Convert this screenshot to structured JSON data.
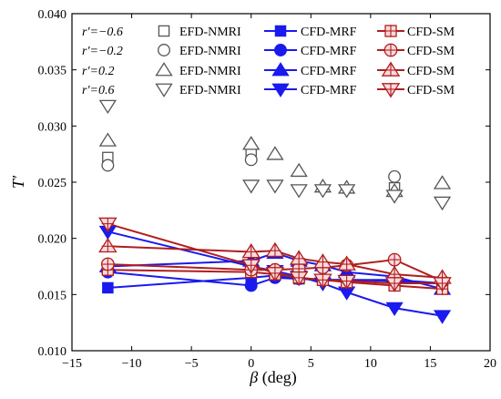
{
  "chart_data": {
    "type": "line",
    "xlabel": {
      "symbol": "β",
      "unit": " (deg)"
    },
    "ylabel": "T'",
    "xlim": [
      -15,
      20
    ],
    "ylim": [
      0.01,
      0.04
    ],
    "x_ticks": [
      -15,
      -10,
      -5,
      0,
      5,
      10,
      15,
      20
    ],
    "y_ticks": [
      0.01,
      0.015,
      0.02,
      0.025,
      0.03,
      0.035,
      0.04
    ],
    "x_tick_labels": [
      "−15",
      "−10",
      "−5",
      "0",
      "5",
      "10",
      "15",
      "20"
    ],
    "y_tick_labels": [
      "0.010",
      "0.015",
      "0.020",
      "0.025",
      "0.030",
      "0.035",
      "0.040"
    ],
    "grid": false,
    "legend_position": "top",
    "colors": {
      "efd": "#555555",
      "mrf": "#1a1aee",
      "sm": "#b01e1e",
      "sm_fill": "#fadadd"
    },
    "legend_rows": [
      {
        "ratio_label": "r′=−0.6",
        "marker": "square"
      },
      {
        "ratio_label": "r′=−0.2",
        "marker": "circle"
      },
      {
        "ratio_label": "r′=0.2",
        "marker": "triangle"
      },
      {
        "ratio_label": "r′=0.6",
        "marker": "triangle-down"
      }
    ],
    "legend_labels": {
      "efd": "EFD-NMRI",
      "mrf": "CFD-MRF",
      "sm": "CFD-SM"
    },
    "series": [
      {
        "name": "EFD-NMRI",
        "ratio": "r′=−0.6",
        "marker": "square",
        "kind": "efd",
        "x": [
          -12,
          0,
          12
        ],
        "y": [
          0.0272,
          0.0278,
          0.0245
        ]
      },
      {
        "name": "EFD-NMRI",
        "ratio": "r′=−0.2",
        "marker": "circle",
        "kind": "efd",
        "x": [
          -12,
          0,
          12
        ],
        "y": [
          0.0265,
          0.027,
          0.0255
        ]
      },
      {
        "name": "EFD-NMRI",
        "ratio": "r′=0.2",
        "marker": "triangle",
        "kind": "efd",
        "x": [
          -12,
          0,
          2,
          4,
          6,
          8,
          12,
          16
        ],
        "y": [
          0.0287,
          0.0284,
          0.0275,
          0.026,
          0.0246,
          0.0245,
          0.0242,
          0.0249
        ]
      },
      {
        "name": "EFD-NMRI",
        "ratio": "r′=0.6",
        "marker": "triangle-down",
        "kind": "efd",
        "x": [
          -12,
          0,
          2,
          4,
          6,
          8,
          12,
          16
        ],
        "y": [
          0.0318,
          0.0247,
          0.0247,
          0.0243,
          0.0243,
          0.0243,
          0.0238,
          0.0232
        ]
      },
      {
        "name": "CFD-MRF",
        "ratio": "r′=−0.6",
        "marker": "square",
        "kind": "mrf",
        "x": [
          -12,
          0,
          2,
          4,
          6,
          8,
          12,
          16
        ],
        "y": [
          0.0156,
          0.0165,
          0.0167,
          0.0164,
          0.0163,
          0.0163,
          0.0162,
          0.016
        ]
      },
      {
        "name": "CFD-MRF",
        "ratio": "r′=−0.2",
        "marker": "circle",
        "kind": "mrf",
        "x": [
          -12,
          0,
          2,
          4,
          6,
          8,
          12,
          16
        ],
        "y": [
          0.017,
          0.0158,
          0.0165,
          0.0164,
          0.0163,
          0.0163,
          0.0163,
          0.016
        ]
      },
      {
        "name": "CFD-MRF",
        "ratio": "r′=0.2",
        "marker": "triangle",
        "kind": "mrf",
        "x": [
          -12,
          0,
          2,
          4,
          6,
          8,
          12,
          16
        ],
        "y": [
          0.0175,
          0.018,
          0.0187,
          0.018,
          0.0176,
          0.017,
          0.0166,
          0.0155
        ]
      },
      {
        "name": "CFD-MRF",
        "ratio": "r′=0.6",
        "marker": "triangle-down",
        "kind": "mrf",
        "x": [
          -12,
          0,
          2,
          4,
          6,
          8,
          12,
          16
        ],
        "y": [
          0.0206,
          0.0175,
          0.0171,
          0.0166,
          0.016,
          0.0152,
          0.0138,
          0.0131
        ]
      },
      {
        "name": "CFD-SM",
        "ratio": "r′=−0.6",
        "marker": "square",
        "kind": "sm",
        "x": [
          -12,
          0,
          2,
          4,
          6,
          8,
          12,
          16
        ],
        "y": [
          0.0172,
          0.017,
          0.0168,
          0.0165,
          0.0163,
          0.0161,
          0.0158,
          0.0155
        ]
      },
      {
        "name": "CFD-SM",
        "ratio": "r′=−0.2",
        "marker": "circle",
        "kind": "sm",
        "x": [
          -12,
          0,
          2,
          4,
          6,
          8,
          12,
          16
        ],
        "y": [
          0.0177,
          0.0172,
          0.0172,
          0.0173,
          0.0174,
          0.0176,
          0.0181,
          0.0162
        ]
      },
      {
        "name": "CFD-SM",
        "ratio": "r′=0.2",
        "marker": "triangle",
        "kind": "sm",
        "x": [
          -12,
          0,
          2,
          4,
          6,
          8,
          12,
          16
        ],
        "y": [
          0.0193,
          0.0188,
          0.0189,
          0.0182,
          0.0179,
          0.0177,
          0.0168,
          0.0165
        ]
      },
      {
        "name": "CFD-SM",
        "ratio": "r′=0.6",
        "marker": "triangle-down",
        "kind": "sm",
        "x": [
          -12,
          0,
          2,
          4,
          6,
          8,
          12,
          16
        ],
        "y": [
          0.0213,
          0.0176,
          0.0169,
          0.0165,
          0.0163,
          0.0162,
          0.016,
          0.016
        ]
      }
    ]
  }
}
